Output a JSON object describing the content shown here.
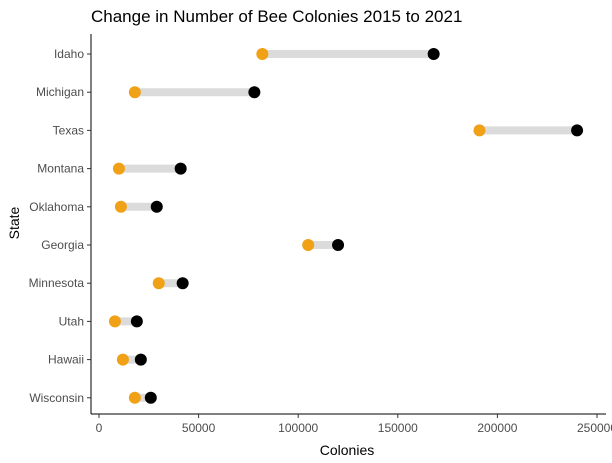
{
  "chart_data": {
    "type": "dumbbell",
    "title": "Change in Number of Bee Colonies 2015 to 2021",
    "xlabel": "Colonies",
    "ylabel": "State",
    "xlim": [
      0,
      250000
    ],
    "xticks": [
      0,
      50000,
      100000,
      150000,
      200000,
      250000
    ],
    "xtick_labels": [
      "0",
      "50000",
      "100000",
      "150000",
      "200000",
      "250000"
    ],
    "grid": false,
    "legend": "none",
    "colors": {
      "value_2015": "#000000",
      "value_2021": "#f0a116",
      "segment": "#dbdbdb"
    },
    "categories": [
      "Idaho",
      "Michigan",
      "Texas",
      "Montana",
      "Oklahoma",
      "Georgia",
      "Minnesota",
      "Utah",
      "Hawaii",
      "Wisconsin"
    ],
    "value_2015": [
      168000,
      78000,
      240000,
      41000,
      29000,
      120000,
      42000,
      19000,
      21000,
      26000
    ],
    "value_2021": [
      82000,
      18000,
      191000,
      10000,
      11000,
      105000,
      30000,
      8000,
      12000,
      18000
    ]
  }
}
